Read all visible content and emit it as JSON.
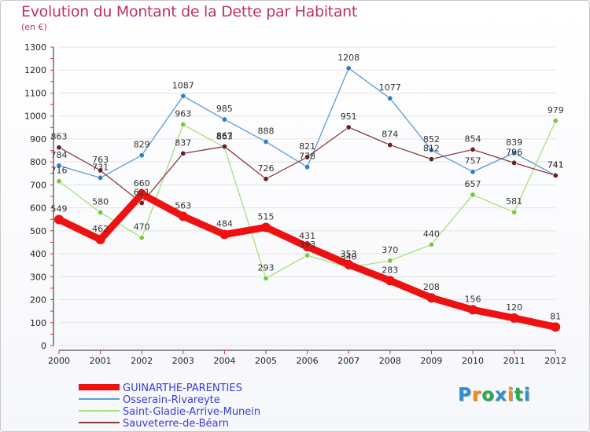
{
  "title": "Evolution du Montant de la Dette par Habitant",
  "subtitle": "(en €)",
  "logo_text": "Proxiti",
  "logo_colors": [
    "#2c8fd6",
    "#f28c1a",
    "#2aa84a",
    "#2c8fd6",
    "#f28c1a",
    "#2aa84a",
    "#2c8fd6"
  ],
  "chart_data": {
    "type": "line",
    "x": [
      "2000",
      "2001",
      "2002",
      "2003",
      "2004",
      "2005",
      "2006",
      "2007",
      "2008",
      "2009",
      "2010",
      "2011",
      "2012"
    ],
    "ylim": [
      0,
      1300
    ],
    "yticks": [
      0,
      100,
      200,
      300,
      400,
      500,
      600,
      700,
      800,
      900,
      1000,
      1100,
      1200,
      1300
    ],
    "grid": "horizontal",
    "legend_placement": "bottom-left",
    "series": [
      {
        "name": "Osserain-Rivareyte",
        "color": "#5b9bd5",
        "marker": "#2f7dc4",
        "values": [
          784,
          731,
          829,
          1087,
          985,
          888,
          778,
          1208,
          1077,
          852,
          757,
          839,
          741
        ]
      },
      {
        "name": "Saint-Gladie-Arrive-Munein",
        "color": "#a6e07a",
        "marker": "#7cc63e",
        "values": [
          716,
          580,
          470,
          963,
          863,
          293,
          393,
          340,
          370,
          440,
          657,
          581,
          979
        ]
      },
      {
        "name": "Sauveterre-de-Béarn",
        "color": "#8b3a3a",
        "marker": "#6b1f1f",
        "values": [
          863,
          763,
          621,
          837,
          867,
          726,
          821,
          951,
          874,
          812,
          854,
          796,
          741
        ]
      },
      {
        "name": "GUINARTHE-PARENTIES",
        "color": "#ee1111",
        "marker": "#ee1111",
        "values": [
          549,
          462,
          660,
          563,
          484,
          515,
          431,
          353,
          283,
          208,
          156,
          120,
          81
        ]
      }
    ],
    "legend_order": [
      "GUINARTHE-PARENTIES",
      "Osserain-Rivareyte",
      "Saint-Gladie-Arrive-Munein",
      "Sauveterre-de-Béarn"
    ]
  }
}
